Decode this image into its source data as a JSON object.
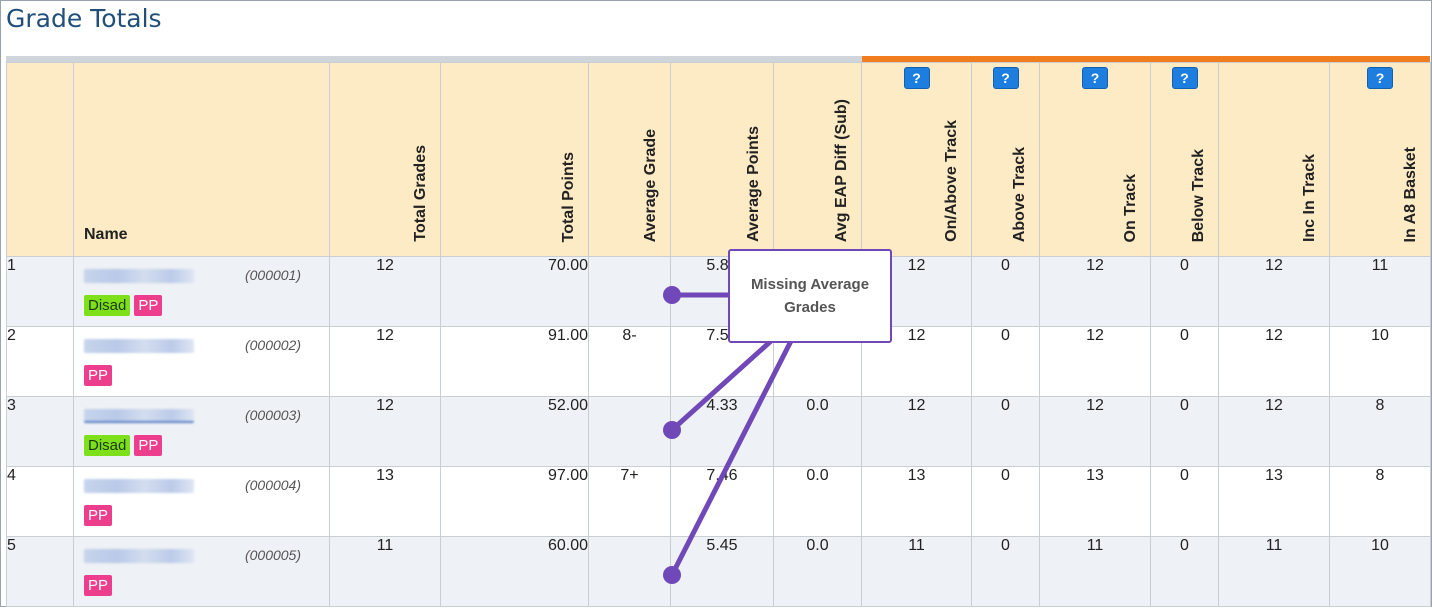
{
  "page": {
    "title": "Grade Totals"
  },
  "columns": {
    "name": "Name",
    "total_grades": "Total Grades",
    "total_points": "Total Points",
    "average_grade": "Average Grade",
    "average_points": "Average Points",
    "avg_eap_diff": "Avg EAP Diff (Sub)",
    "on_above_track": "On/Above Track",
    "above_track": "Above Track",
    "on_track": "On Track",
    "below_track": "Below Track",
    "inc_in_track": "Inc In Track",
    "in_a8_basket": "In A8 Basket",
    "help_label": "?"
  },
  "rows": [
    {
      "index": "1",
      "id": "(000001)",
      "tags": [
        "Disad",
        "PP"
      ],
      "total_grades": "12",
      "total_points": "70.00",
      "average_grade": "",
      "average_points": "5.83",
      "avg_eap_diff": "",
      "on_above_track": "12",
      "above_track": "0",
      "on_track": "12",
      "below_track": "0",
      "inc_in_track": "12",
      "in_a8_basket": "11"
    },
    {
      "index": "2",
      "id": "(000002)",
      "tags": [
        "PP"
      ],
      "total_grades": "12",
      "total_points": "91.00",
      "average_grade": "8-",
      "average_points": "7.58",
      "avg_eap_diff": "0.0",
      "on_above_track": "12",
      "above_track": "0",
      "on_track": "12",
      "below_track": "0",
      "inc_in_track": "12",
      "in_a8_basket": "10"
    },
    {
      "index": "3",
      "id": "(000003)",
      "tags": [
        "Disad",
        "PP"
      ],
      "total_grades": "12",
      "total_points": "52.00",
      "average_grade": "",
      "average_points": "4.33",
      "avg_eap_diff": "0.0",
      "on_above_track": "12",
      "above_track": "0",
      "on_track": "12",
      "below_track": "0",
      "inc_in_track": "12",
      "in_a8_basket": "8"
    },
    {
      "index": "4",
      "id": "(000004)",
      "tags": [
        "PP"
      ],
      "total_grades": "13",
      "total_points": "97.00",
      "average_grade": "7+",
      "average_points": "7.46",
      "avg_eap_diff": "0.0",
      "on_above_track": "13",
      "above_track": "0",
      "on_track": "13",
      "below_track": "0",
      "inc_in_track": "13",
      "in_a8_basket": "8"
    },
    {
      "index": "5",
      "id": "(000005)",
      "tags": [
        "PP"
      ],
      "total_grades": "11",
      "total_points": "60.00",
      "average_grade": "",
      "average_points": "5.45",
      "avg_eap_diff": "0.0",
      "on_above_track": "11",
      "above_track": "0",
      "on_track": "11",
      "below_track": "0",
      "inc_in_track": "11",
      "in_a8_basket": "10"
    }
  ],
  "annotation": {
    "text": "Missing Average Grades",
    "color": "#7048b8"
  },
  "colors": {
    "header_bg": "#fdebc6",
    "accent_orange": "#f07d1e",
    "help_button": "#1e7ee0",
    "disad_tag": "#7ee01a",
    "pp_tag": "#ec3e8c"
  }
}
